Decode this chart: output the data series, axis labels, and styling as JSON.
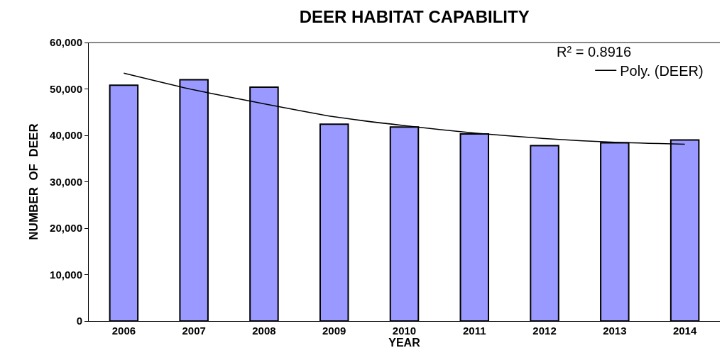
{
  "chart_data": {
    "type": "bar",
    "title": "DEER HABITAT CAPABILITY",
    "xlabel": "YEAR",
    "ylabel": "NUMBER  OF  DEER",
    "categories": [
      "2006",
      "2007",
      "2008",
      "2009",
      "2010",
      "2011",
      "2012",
      "2013",
      "2014"
    ],
    "series": [
      {
        "color": "#9999ff",
        "values": [
          50800,
          52000,
          50400,
          42400,
          41800,
          40300,
          37800,
          38400,
          39000
        ]
      },
      {
        "type": "line",
        "name": "Poly. (DEER)",
        "color": "#000000",
        "values": [
          53400,
          49800,
          46800,
          44000,
          42100,
          40500,
          39300,
          38500,
          38100
        ]
      }
    ],
    "annotations": [
      "R² = 0.8916"
    ],
    "ylim": [
      0,
      60000
    ],
    "yticks": [
      {
        "value": 0,
        "label": "0"
      },
      {
        "value": 10000,
        "label": "10,000"
      },
      {
        "value": 20000,
        "label": "20,000"
      },
      {
        "value": 30000,
        "label": "30,000"
      },
      {
        "value": 40000,
        "label": "40,000"
      },
      {
        "value": 50000,
        "label": "50,000"
      },
      {
        "value": 60000,
        "label": "60,000"
      }
    ],
    "grid": false,
    "legend": "top right",
    "line_style": "solid",
    "marker": "none"
  }
}
